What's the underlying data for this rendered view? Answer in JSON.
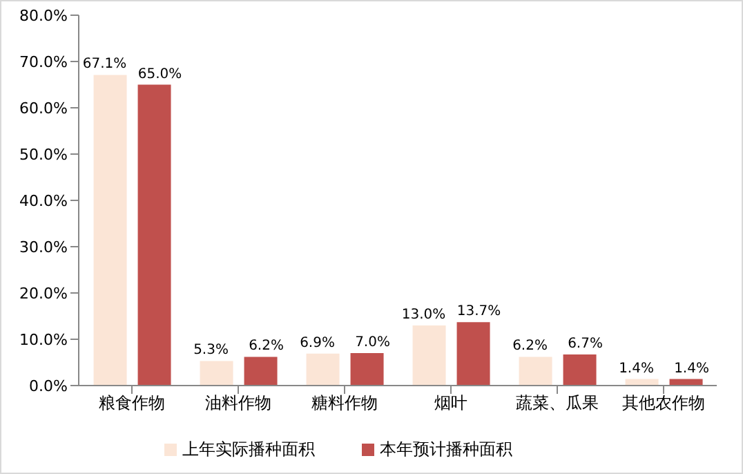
{
  "chart_data": {
    "type": "bar",
    "categories": [
      "粮食作物",
      "油料作物",
      "糖料作物",
      "烟叶",
      "蔬菜、瓜果",
      "其他农作物"
    ],
    "series": [
      {
        "name": "上年实际播种面积",
        "color": "#fbe5d6",
        "values": [
          67.1,
          5.3,
          6.9,
          13.0,
          6.2,
          1.4
        ],
        "value_labels": [
          "67.1%",
          "5.3%",
          "6.9%",
          "13.0%",
          "6.2%",
          "1.4%"
        ]
      },
      {
        "name": "本年预计播种面积",
        "color": "#c0504d",
        "values": [
          65.0,
          6.2,
          7.0,
          13.7,
          6.7,
          1.4
        ],
        "value_labels": [
          "65.0%",
          "6.2%",
          "7.0%",
          "13.7%",
          "6.7%",
          "1.4%"
        ]
      }
    ],
    "ylim": [
      0,
      80
    ],
    "yticks": [
      {
        "value": 0,
        "label": "0.0%"
      },
      {
        "value": 10,
        "label": "10.0%"
      },
      {
        "value": 20,
        "label": "20.0%"
      },
      {
        "value": 30,
        "label": "30.0%"
      },
      {
        "value": 40,
        "label": "40.0%"
      },
      {
        "value": 50,
        "label": "50.0%"
      },
      {
        "value": 60,
        "label": "60.0%"
      },
      {
        "value": 70,
        "label": "70.0%"
      },
      {
        "value": 80,
        "label": "80.0%"
      }
    ],
    "grid": false,
    "legend": "bottom"
  }
}
